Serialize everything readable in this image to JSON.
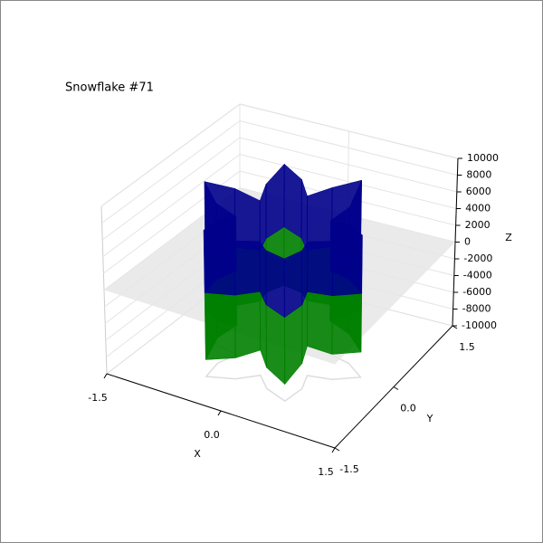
{
  "chart_data": {
    "type": "walls3d",
    "title": "Snowflake #71",
    "x_label": "X",
    "y_label": "Y",
    "z_label": "Z",
    "x": [
      1.05,
      0.773,
      0.476,
      0.566,
      0.525,
      0.207,
      0,
      -0.207,
      -0.525,
      -0.566,
      -0.476,
      -0.773,
      -1.05,
      -0.773,
      -0.476,
      -0.566,
      -0.525,
      -0.207,
      0,
      0.207,
      0.525,
      0.566,
      0.476,
      0.773
    ],
    "y": [
      0,
      0.207,
      0.275,
      0.566,
      0.909,
      0.773,
      0.55,
      0.773,
      0.909,
      0.566,
      0.275,
      0.207,
      0,
      -0.207,
      -0.275,
      -0.566,
      -0.909,
      -0.773,
      -0.55,
      -0.773,
      -0.909,
      -0.566,
      -0.275,
      -0.207
    ],
    "series": [
      {
        "color": "#008000",
        "values": [
          -7000,
          -6500,
          -6000,
          -6500,
          -7500,
          -7000,
          -6000,
          -6500,
          -7000,
          -6500,
          -6000,
          -7000,
          -7500,
          -7000,
          -6500,
          -7000,
          -8000,
          -7500,
          -7000,
          -7500,
          -8000,
          -7000,
          -6500,
          -7000
        ]
      },
      {
        "color": "#00008b",
        "values": [
          7000,
          6500,
          6000,
          6500,
          8000,
          7000,
          6500,
          7000,
          7500,
          6500,
          6000,
          7000,
          8000,
          7000,
          6500,
          7000,
          7500,
          6500,
          6000,
          6500,
          7000,
          6500,
          6000,
          6500
        ]
      }
    ],
    "xlim": [
      -1.5,
      1.5
    ],
    "ylim": [
      -1.5,
      1.5
    ],
    "zlim": [
      -10000,
      10000
    ],
    "xticks": [
      -1.5,
      {
        "value": 0,
        "label": "0.0"
      },
      1.5
    ],
    "yticks": [
      -1.5,
      {
        "value": 0,
        "label": "0.0"
      },
      1.5
    ],
    "zticks": [
      -10000,
      -8000,
      -6000,
      -4000,
      -2000,
      0,
      2000,
      4000,
      6000,
      8000,
      10000
    ],
    "grid": true
  }
}
